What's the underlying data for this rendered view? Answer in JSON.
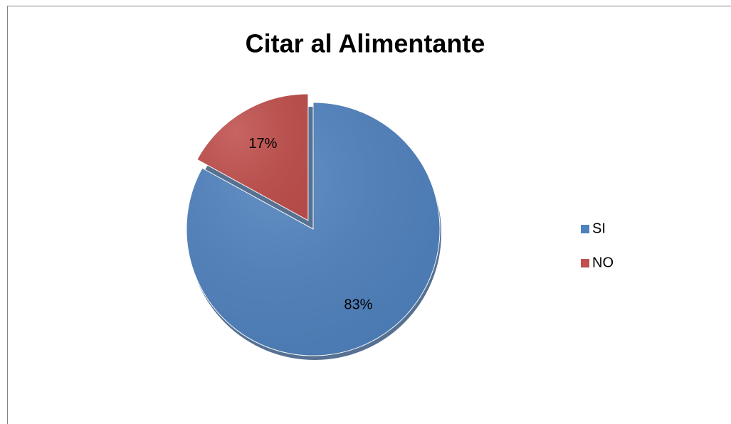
{
  "chart_data": {
    "type": "pie",
    "title": "Citar al Alimentante",
    "categories": [
      "SI",
      "NO"
    ],
    "values": [
      83,
      17
    ],
    "value_labels": [
      "83%",
      "17%"
    ],
    "colors": [
      "#4f81bd",
      "#c0504d"
    ],
    "legend": "right"
  }
}
